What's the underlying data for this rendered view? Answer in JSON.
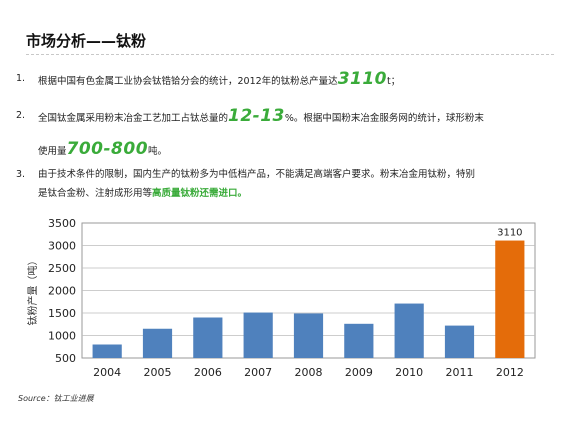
{
  "title": "市场分析——钛粉",
  "items": [
    {
      "num": "1.",
      "pre": "根据中国有色金属工业协会钛锆铪分会的统计，2012年的钛粉总产量达",
      "big": "3110",
      "post": "t；"
    },
    {
      "num": "2.",
      "line1_pre": "全国钛金属采用粉末冶金工艺加工占钛总量的",
      "line1_big": "12-13",
      "line1_post": "%。根据中国粉末冶金服务网的统计，球形粉末",
      "line2_pre": "使用量",
      "line2_big": "700-800",
      "line2_post": "吨。"
    },
    {
      "num": "3.",
      "line1": "由于技术条件的限制，国内生产的钛粉多为中低档产品，不能满足高端客户要求。粉末冶金用钛粉，特别",
      "line2_pre": "是钛合金粉、注射成形用等",
      "line2_hl": "高质量钛粉还需进口。"
    }
  ],
  "source_label": "Source：钛工业进展",
  "chart_data": {
    "type": "bar",
    "categories": [
      "2004",
      "2005",
      "2006",
      "2007",
      "2008",
      "2009",
      "2010",
      "2011",
      "2012"
    ],
    "values": [
      800,
      1150,
      1400,
      1510,
      1490,
      1260,
      1710,
      1220,
      3110
    ],
    "ylabel": "钛粉产量（吨）",
    "ylim": [
      500,
      3500
    ],
    "yticks": [
      500,
      1000,
      1500,
      2000,
      2500,
      3000,
      3500
    ],
    "grid": true,
    "bar_color": "#4f81bd",
    "highlight_color": "#e46c0a",
    "highlight_index": 8,
    "data_labels": [
      {
        "index": 8,
        "text": "3110"
      }
    ]
  }
}
